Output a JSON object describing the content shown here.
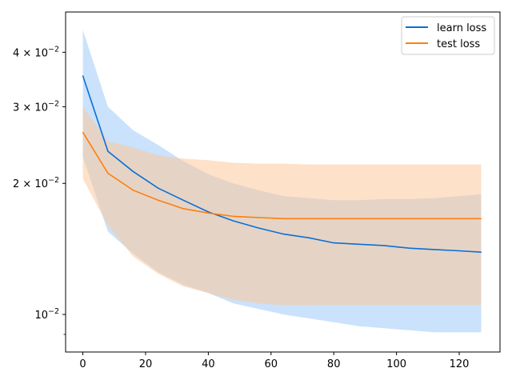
{
  "chart_data": {
    "type": "line",
    "title": "",
    "xlabel": "",
    "ylabel": "",
    "yscale": "log",
    "xlim": [
      -5.5,
      133
    ],
    "ylim": [
      0.0082,
      0.0495
    ],
    "grid": false,
    "legend_position": "top-right",
    "x_ticks": [
      0,
      20,
      40,
      60,
      80,
      100,
      120
    ],
    "x_tick_labels": [
      "0",
      "20",
      "40",
      "60",
      "80",
      "100",
      "120"
    ],
    "y_ticks": [
      0.01,
      0.02,
      0.03,
      0.04
    ],
    "y_tick_labels": [
      {
        "base": "10",
        "exp": "−2",
        "mult": ""
      },
      {
        "base": "10",
        "exp": "−2",
        "mult": "2 × "
      },
      {
        "base": "10",
        "exp": "−2",
        "mult": "3 × "
      },
      {
        "base": "10",
        "exp": "−2",
        "mult": "4 × "
      }
    ],
    "y_minor_ticks": [
      0.009
    ],
    "series": [
      {
        "name": "learn loss",
        "color": "#1f77b4",
        "line_color": "#0a6fd6",
        "band_color": "#9ecbf7",
        "x": [
          0,
          8,
          16,
          24,
          32,
          40,
          48,
          56,
          64,
          72,
          80,
          88,
          96,
          104,
          112,
          120,
          127
        ],
        "mean": [
          0.0353,
          0.0237,
          0.0213,
          0.0195,
          0.0183,
          0.0172,
          0.0164,
          0.0158,
          0.0153,
          0.015,
          0.0146,
          0.0145,
          0.0144,
          0.0142,
          0.0141,
          0.014,
          0.0139
        ],
        "upper": [
          0.045,
          0.03,
          0.0265,
          0.0245,
          0.0225,
          0.021,
          0.02,
          0.0193,
          0.0187,
          0.0185,
          0.0183,
          0.0183,
          0.0184,
          0.0184,
          0.0185,
          0.0187,
          0.0189
        ],
        "lower": [
          0.023,
          0.0155,
          0.0138,
          0.0125,
          0.0117,
          0.0112,
          0.0106,
          0.0103,
          0.01,
          0.0098,
          0.0096,
          0.0094,
          0.0093,
          0.0092,
          0.0091,
          0.0091,
          0.0091
        ]
      },
      {
        "name": "test loss",
        "color": "#ff7f0e",
        "line_color": "#ff7f0e",
        "band_color": "#fbc89a",
        "x": [
          0,
          8,
          16,
          24,
          32,
          40,
          48,
          56,
          64,
          72,
          80,
          88,
          96,
          104,
          112,
          120,
          127
        ],
        "mean": [
          0.0262,
          0.0211,
          0.0193,
          0.0183,
          0.0175,
          0.0171,
          0.0168,
          0.0167,
          0.0166,
          0.0166,
          0.0166,
          0.0166,
          0.0166,
          0.0166,
          0.0166,
          0.0166,
          0.0166
        ],
        "upper": [
          0.03,
          0.025,
          0.0242,
          0.0232,
          0.0228,
          0.0226,
          0.0223,
          0.0222,
          0.0222,
          0.0221,
          0.0221,
          0.0221,
          0.0221,
          0.0221,
          0.0221,
          0.0221,
          0.0221
        ],
        "lower": [
          0.0205,
          0.016,
          0.0136,
          0.0124,
          0.0116,
          0.0112,
          0.0108,
          0.0106,
          0.0105,
          0.0105,
          0.0105,
          0.0105,
          0.0105,
          0.0105,
          0.0105,
          0.0105,
          0.0105
        ]
      }
    ]
  }
}
